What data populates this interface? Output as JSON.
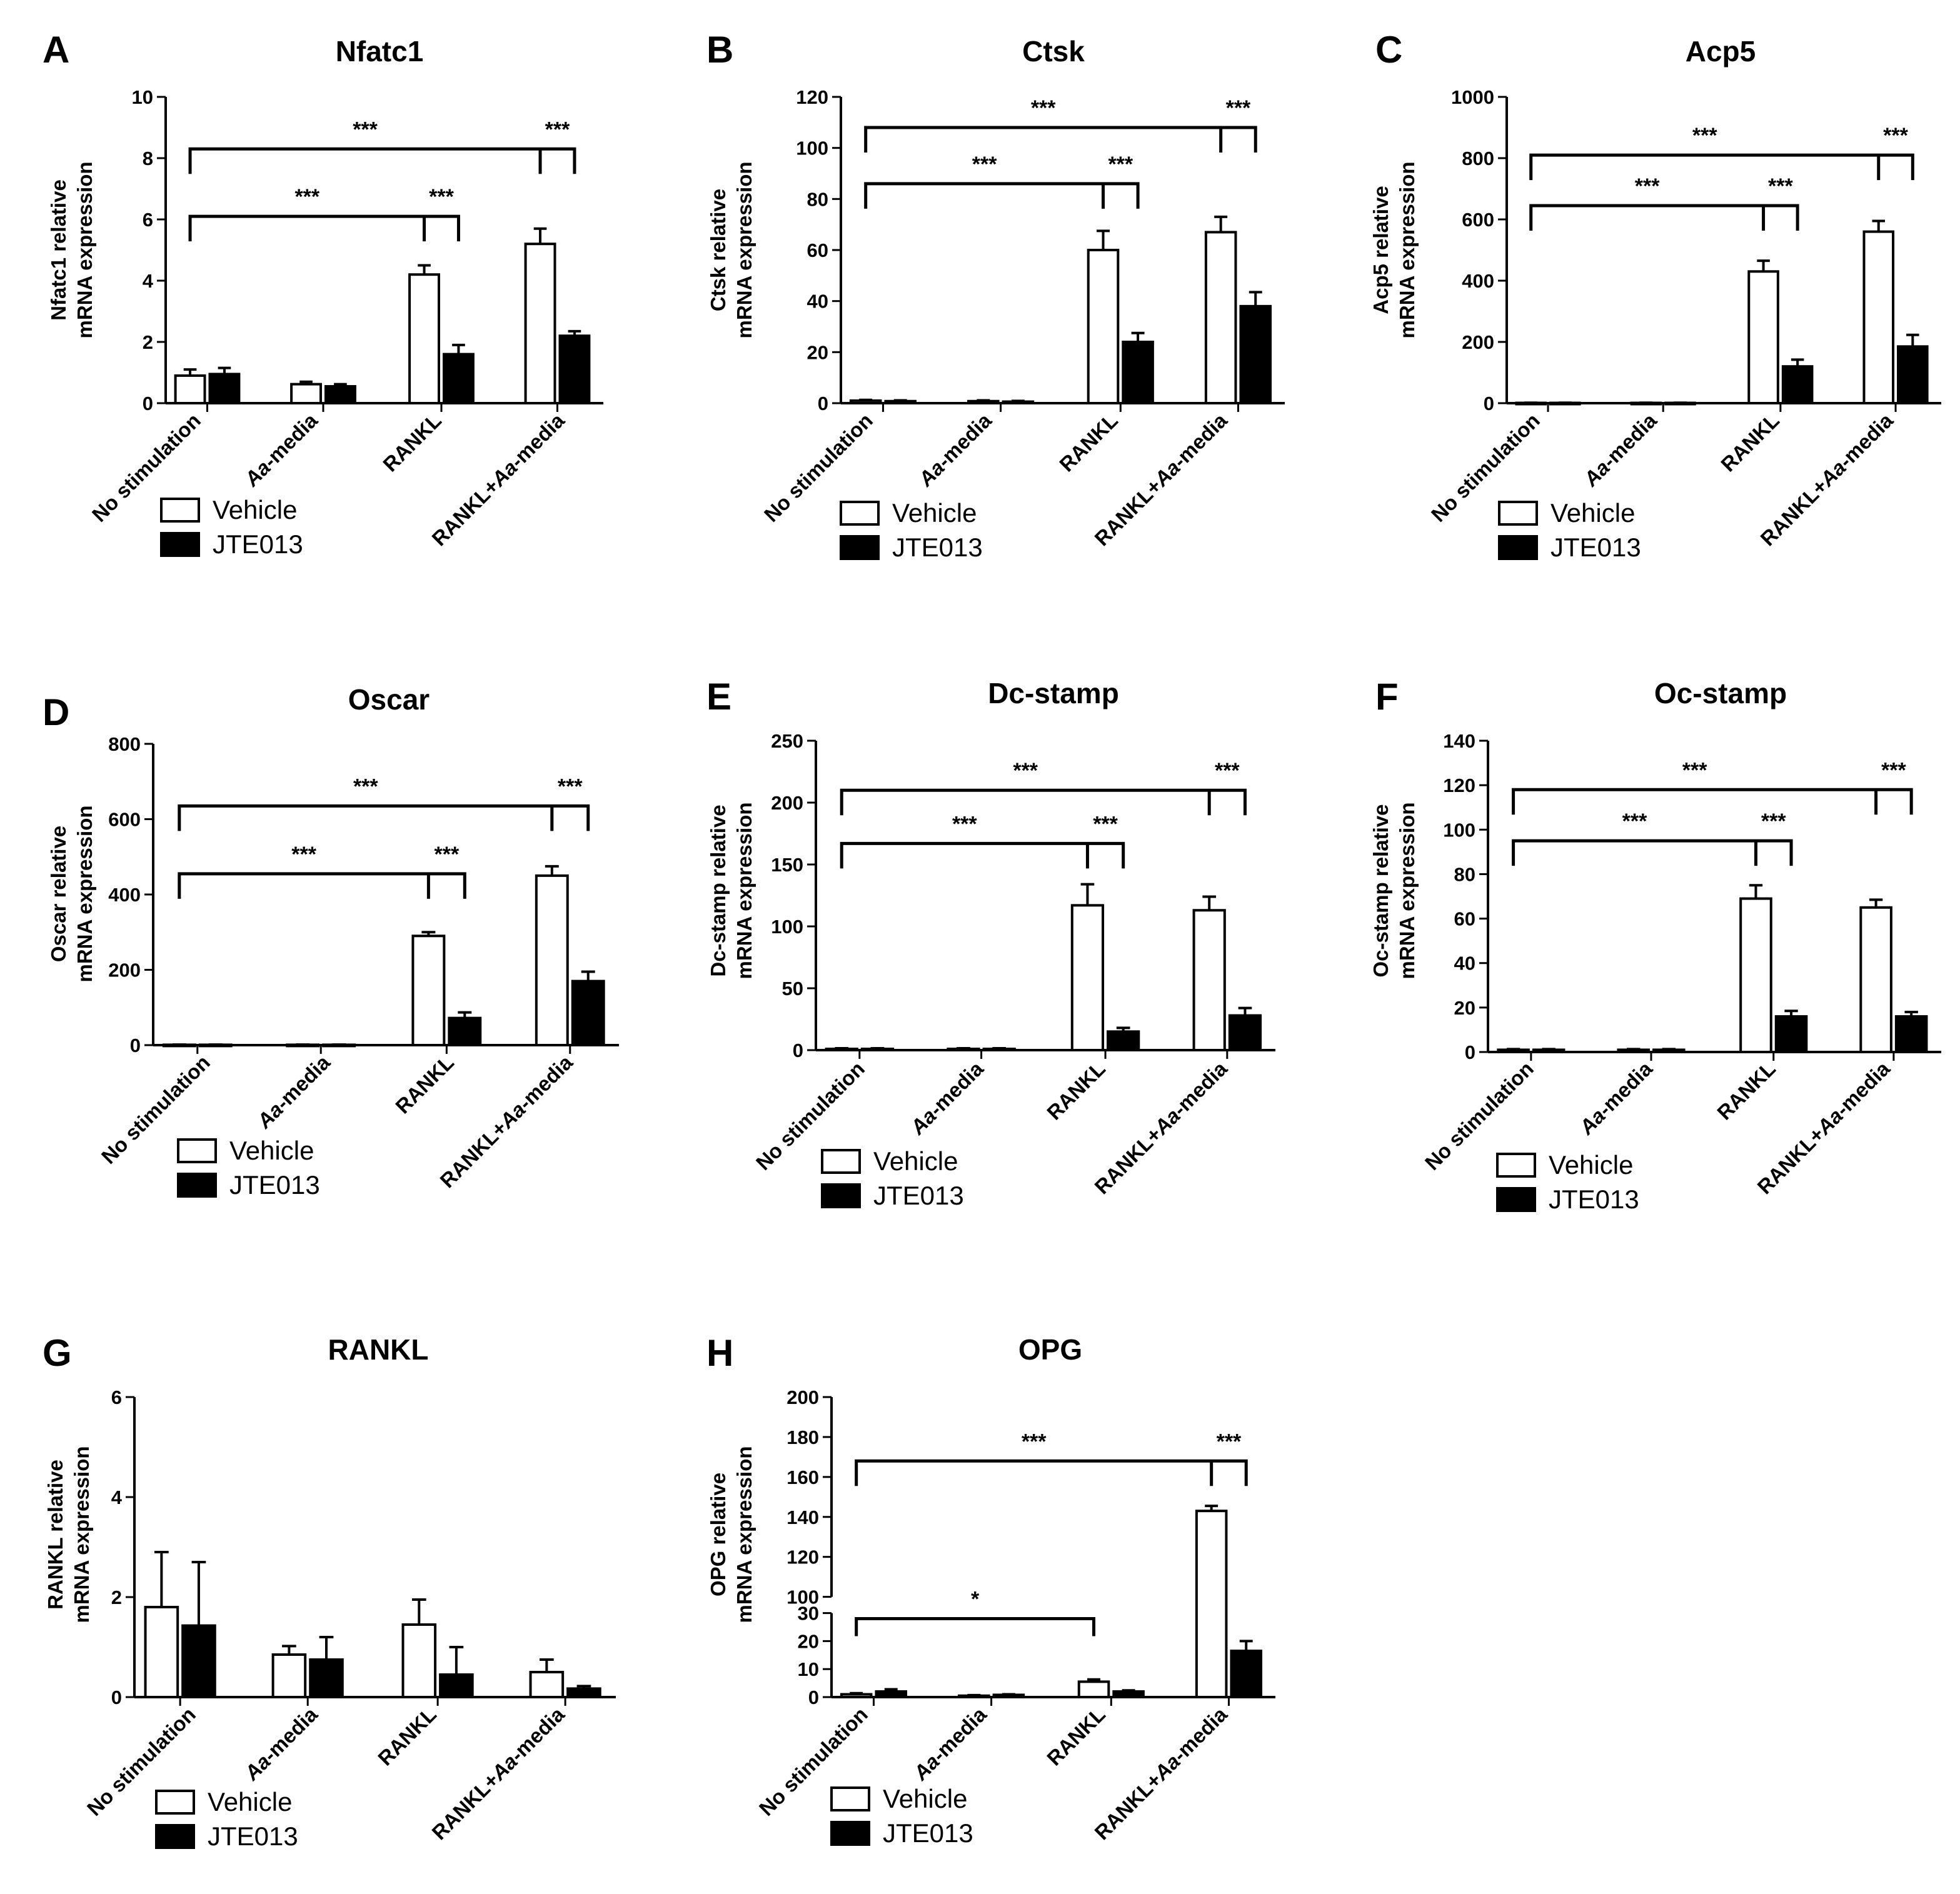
{
  "series_names": [
    "Vehicle",
    "JTE013"
  ],
  "chart_data": [
    {
      "panel": "A",
      "type": "bar",
      "title": "Nfatc1",
      "ylabel": [
        "Nfatc1 relative",
        "mRNA expression"
      ],
      "categories": [
        "No stimulation",
        "*Aa*-media",
        "RANKL",
        "RANKL+*Aa*-media"
      ],
      "ylim": [
        0,
        10
      ],
      "yticks": [
        0,
        2,
        4,
        6,
        8,
        10
      ],
      "series": [
        {
          "name": "Vehicle",
          "values": [
            0.9,
            0.62,
            4.2,
            5.2
          ],
          "errors": [
            0.2,
            0.08,
            0.3,
            0.5
          ]
        },
        {
          "name": "JTE013",
          "values": [
            0.95,
            0.55,
            1.6,
            2.2
          ],
          "errors": [
            0.2,
            0.07,
            0.3,
            0.15
          ]
        }
      ],
      "significance": [
        {
          "label": "***",
          "level": 8.3,
          "from": [
            0,
            0
          ],
          "to": [
            3,
            0
          ],
          "mid": [
            3,
            1
          ],
          "type": "long"
        },
        {
          "label": "***",
          "level": 6.1,
          "from": [
            0,
            0
          ],
          "to": [
            2,
            0
          ],
          "mid": [
            2,
            1
          ],
          "type": "long"
        }
      ]
    },
    {
      "panel": "B",
      "type": "bar",
      "title": "Ctsk",
      "ylabel": [
        "Ctsk relative",
        "mRNA expression"
      ],
      "categories": [
        "No stimulation",
        "*Aa*-media",
        "RANKL",
        "RANKL+*Aa*-media"
      ],
      "ylim": [
        0,
        120
      ],
      "yticks": [
        0,
        20,
        40,
        60,
        80,
        100,
        120
      ],
      "series": [
        {
          "name": "Vehicle",
          "values": [
            1,
            0.8,
            60,
            67
          ],
          "errors": [
            0.3,
            0.3,
            7.5,
            6
          ]
        },
        {
          "name": "JTE013",
          "values": [
            0.8,
            0.6,
            24,
            38
          ],
          "errors": [
            0.3,
            0.3,
            3.5,
            5.5
          ]
        }
      ],
      "significance": [
        {
          "label": "***",
          "level": 108,
          "from": [
            0,
            0
          ],
          "to": [
            3,
            0
          ],
          "mid": [
            3,
            1
          ],
          "type": "long"
        },
        {
          "label": "***",
          "level": 86,
          "from": [
            0,
            0
          ],
          "to": [
            2,
            0
          ],
          "mid": [
            2,
            1
          ],
          "type": "long"
        }
      ]
    },
    {
      "panel": "C",
      "type": "bar",
      "title": "Acp5",
      "ylabel": [
        "Acp5 relative",
        "mRNA expression"
      ],
      "categories": [
        "No stimulation",
        "*Aa*-media",
        "RANKL",
        "RANKL+*Aa*-media"
      ],
      "ylim": [
        0,
        1000
      ],
      "yticks": [
        0,
        200,
        400,
        600,
        800,
        1000
      ],
      "series": [
        {
          "name": "Vehicle",
          "values": [
            1,
            1,
            430,
            560
          ],
          "errors": [
            0.5,
            0.5,
            35,
            35
          ]
        },
        {
          "name": "JTE013",
          "values": [
            1,
            1,
            120,
            185
          ],
          "errors": [
            0.5,
            0.5,
            22,
            38
          ]
        }
      ],
      "significance": [
        {
          "label": "***",
          "level": 810,
          "from": [
            0,
            0
          ],
          "to": [
            3,
            0
          ],
          "mid": [
            3,
            1
          ],
          "type": "long"
        },
        {
          "label": "***",
          "level": 645,
          "from": [
            0,
            0
          ],
          "to": [
            2,
            0
          ],
          "mid": [
            2,
            1
          ],
          "type": "long"
        }
      ]
    },
    {
      "panel": "D",
      "type": "bar",
      "title": "Oscar",
      "ylabel": [
        "Oscar relative",
        "mRNA expression"
      ],
      "categories": [
        "No stimulation",
        "*Aa*-media",
        "RANKL",
        "RANKL+*Aa*-media"
      ],
      "ylim": [
        0,
        800
      ],
      "yticks": [
        0,
        200,
        400,
        600,
        800
      ],
      "series": [
        {
          "name": "Vehicle",
          "values": [
            1,
            1,
            290,
            450
          ],
          "errors": [
            0.5,
            0.5,
            10,
            25
          ]
        },
        {
          "name": "JTE013",
          "values": [
            1,
            1,
            72,
            170
          ],
          "errors": [
            0.5,
            0.5,
            15,
            25
          ]
        }
      ],
      "significance": [
        {
          "label": "***",
          "level": 635,
          "from": [
            0,
            0
          ],
          "to": [
            3,
            0
          ],
          "mid": [
            3,
            1
          ],
          "type": "long"
        },
        {
          "label": "***",
          "level": 455,
          "from": [
            0,
            0
          ],
          "to": [
            2,
            0
          ],
          "mid": [
            2,
            1
          ],
          "type": "long"
        }
      ]
    },
    {
      "panel": "E",
      "type": "bar",
      "title": "Dc-stamp",
      "ylabel": [
        "Dc-stamp relative",
        "mRNA expression"
      ],
      "categories": [
        "No stimulation",
        "*Aa*-media",
        "RANKL",
        "RANKL+*Aa*-media"
      ],
      "ylim": [
        0,
        250
      ],
      "yticks": [
        0,
        50,
        100,
        150,
        200,
        250
      ],
      "series": [
        {
          "name": "Vehicle",
          "values": [
            1,
            1,
            117,
            113
          ],
          "errors": [
            0.5,
            0.5,
            17,
            11
          ]
        },
        {
          "name": "JTE013",
          "values": [
            1,
            1,
            15,
            28
          ],
          "errors": [
            0.5,
            0.5,
            3,
            6
          ]
        }
      ],
      "significance": [
        {
          "label": "***",
          "level": 210,
          "from": [
            0,
            0
          ],
          "to": [
            3,
            0
          ],
          "mid": [
            3,
            1
          ],
          "type": "long"
        },
        {
          "label": "***",
          "level": 167,
          "from": [
            0,
            0
          ],
          "to": [
            2,
            0
          ],
          "mid": [
            2,
            1
          ],
          "type": "long"
        }
      ]
    },
    {
      "panel": "F",
      "type": "bar",
      "title": "Oc-stamp",
      "ylabel": [
        "Oc-stamp relative",
        "mRNA expression"
      ],
      "categories": [
        "No stimulation",
        "*Aa*-media",
        "RANKL",
        "RANKL+*Aa*-media"
      ],
      "ylim": [
        0,
        140
      ],
      "yticks": [
        0,
        20,
        40,
        60,
        80,
        100,
        120,
        140
      ],
      "series": [
        {
          "name": "Vehicle",
          "values": [
            1,
            1,
            69,
            65
          ],
          "errors": [
            0.3,
            0.3,
            6,
            3.5
          ]
        },
        {
          "name": "JTE013",
          "values": [
            1,
            1,
            16,
            16
          ],
          "errors": [
            0.3,
            0.3,
            2.5,
            2
          ]
        }
      ],
      "significance": [
        {
          "label": "***",
          "level": 118,
          "from": [
            0,
            0
          ],
          "to": [
            3,
            0
          ],
          "mid": [
            3,
            1
          ],
          "type": "long"
        },
        {
          "label": "***",
          "level": 95,
          "from": [
            0,
            0
          ],
          "to": [
            2,
            0
          ],
          "mid": [
            2,
            1
          ],
          "type": "long"
        }
      ]
    },
    {
      "panel": "G",
      "type": "bar",
      "title": "RANKL",
      "ylabel": [
        "RANKL relative",
        "mRNA expression"
      ],
      "categories": [
        "No stimulation",
        "*Aa*-media",
        "RANKL",
        "RANKL+*Aa*-media"
      ],
      "ylim": [
        0,
        6
      ],
      "yticks": [
        0,
        2,
        4,
        6
      ],
      "series": [
        {
          "name": "Vehicle",
          "values": [
            1.8,
            0.85,
            1.45,
            0.5
          ],
          "errors": [
            1.1,
            0.17,
            0.5,
            0.25
          ]
        },
        {
          "name": "JTE013",
          "values": [
            1.43,
            0.75,
            0.45,
            0.17
          ],
          "errors": [
            1.27,
            0.45,
            0.55,
            0.05
          ]
        }
      ],
      "significance": []
    },
    {
      "panel": "H",
      "type": "bar",
      "title": "OPG",
      "ylabel": [
        "OPG relative",
        "mRNA expression"
      ],
      "categories": [
        "No stimulation",
        "*Aa*-media",
        "RANKL",
        "RANKL+*Aa*-media"
      ],
      "ylim": [
        0,
        200
      ],
      "axis_break": [
        30,
        100
      ],
      "yticks": [
        0,
        10,
        20,
        30,
        100,
        120,
        140,
        160,
        180,
        200
      ],
      "series": [
        {
          "name": "Vehicle",
          "values": [
            1,
            0.5,
            5.5,
            143
          ],
          "errors": [
            0.4,
            0.2,
            0.8,
            2.5
          ]
        },
        {
          "name": "JTE013",
          "values": [
            2,
            0.8,
            2,
            16.5
          ],
          "errors": [
            0.8,
            0.2,
            0.4,
            3.5
          ]
        }
      ],
      "significance": [
        {
          "label": "***",
          "level": 168,
          "from": [
            0,
            0
          ],
          "to": [
            3,
            0
          ],
          "mid": [
            3,
            1
          ],
          "type": "long"
        },
        {
          "label": "*",
          "level": 28,
          "from": [
            0,
            0
          ],
          "to": [
            2,
            0
          ],
          "type": "simple"
        }
      ]
    }
  ]
}
